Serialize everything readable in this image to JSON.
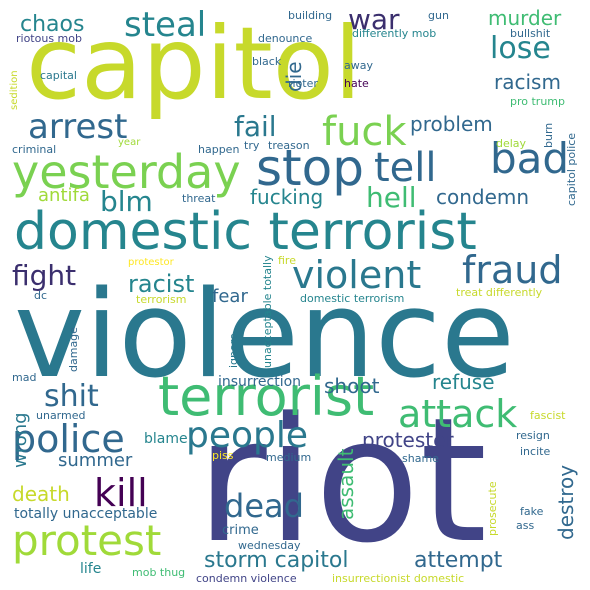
{
  "palette": {
    "lime": "#c7d92b",
    "green": "#7ad151",
    "lightgreen": "#a0da39",
    "mint": "#3fbc73",
    "teal": "#1f9e89",
    "teal2": "#25858e",
    "blue": "#2a788e",
    "steel": "#31688e",
    "indigo": "#414487",
    "deep": "#3b2f6e",
    "purple": "#440154",
    "yellow": "#fde725"
  },
  "words": [
    {
      "text": "violence",
      "color": "#2a788e"
    },
    {
      "text": "riot",
      "color": "#414487"
    },
    {
      "text": "capitol",
      "color": "#c7d92b"
    },
    {
      "text": "domestic terrorist",
      "color": "#25858e"
    },
    {
      "text": "terrorist",
      "color": "#3fbc73"
    },
    {
      "text": "yesterday",
      "color": "#7ad151"
    },
    {
      "text": "stop",
      "color": "#31688e"
    },
    {
      "text": "violent",
      "color": "#2a788e"
    },
    {
      "text": "fraud",
      "color": "#31688e"
    },
    {
      "text": "protest",
      "color": "#a0da39"
    },
    {
      "text": "police",
      "color": "#31688e"
    },
    {
      "text": "attack",
      "color": "#3fbc73"
    },
    {
      "text": "people",
      "color": "#2a788e"
    },
    {
      "text": "fuck",
      "color": "#7ad151"
    },
    {
      "text": "tell",
      "color": "#31688e"
    },
    {
      "text": "bad",
      "color": "#31688e"
    },
    {
      "text": "arrest",
      "color": "#31688e"
    },
    {
      "text": "steal",
      "color": "#25858e"
    },
    {
      "text": "kill",
      "color": "#440154"
    },
    {
      "text": "war",
      "color": "#3b2f6e"
    },
    {
      "text": "hell",
      "color": "#3fbc73"
    },
    {
      "text": "blm",
      "color": "#25858e"
    },
    {
      "text": "fight",
      "color": "#3b2f6e"
    },
    {
      "text": "shit",
      "color": "#31688e"
    },
    {
      "text": "dead",
      "color": "#31688e"
    },
    {
      "text": "lose",
      "color": "#25858e"
    },
    {
      "text": "fail",
      "color": "#2a788e"
    },
    {
      "text": "chaos",
      "color": "#25858e"
    },
    {
      "text": "storm capitol",
      "color": "#2a788e"
    },
    {
      "text": "attempt",
      "color": "#31688e"
    },
    {
      "text": "racist",
      "color": "#25858e"
    },
    {
      "text": "problem",
      "color": "#31688e"
    },
    {
      "text": "fucking",
      "color": "#25858e"
    },
    {
      "text": "condemn",
      "color": "#31688e"
    },
    {
      "text": "racism",
      "color": "#31688e"
    },
    {
      "text": "murder",
      "color": "#3fbc73"
    },
    {
      "text": "protester",
      "color": "#414487"
    },
    {
      "text": "refuse",
      "color": "#25858e"
    },
    {
      "text": "shoot",
      "color": "#31688e"
    },
    {
      "text": "death",
      "color": "#c7d92b"
    },
    {
      "text": "summer",
      "color": "#31688e"
    },
    {
      "text": "antifa",
      "color": "#a0da39"
    },
    {
      "text": "fear",
      "color": "#31688e"
    },
    {
      "text": "die",
      "color": "#31688e"
    },
    {
      "text": "wrong",
      "color": "#2a788e"
    },
    {
      "text": "assault",
      "color": "#3fbc73"
    },
    {
      "text": "destroy",
      "color": "#31688e"
    },
    {
      "text": "insurrection",
      "color": "#31688e"
    },
    {
      "text": "totally unacceptable",
      "color": "#31688e"
    },
    {
      "text": "blame",
      "color": "#25858e"
    },
    {
      "text": "life",
      "color": "#25858e"
    },
    {
      "text": "crime",
      "color": "#31688e"
    },
    {
      "text": "riotous mob",
      "color": "#414487"
    },
    {
      "text": "capital",
      "color": "#2a788e"
    },
    {
      "text": "building",
      "color": "#31688e"
    },
    {
      "text": "gun",
      "color": "#31688e"
    },
    {
      "text": "bullshit",
      "color": "#31688e"
    },
    {
      "text": "denounce",
      "color": "#31688e"
    },
    {
      "text": "differently mob",
      "color": "#25858e"
    },
    {
      "text": "black",
      "color": "#31688e"
    },
    {
      "text": "away",
      "color": "#31688e"
    },
    {
      "text": "rioter",
      "color": "#31688e"
    },
    {
      "text": "hate",
      "color": "#440154"
    },
    {
      "text": "pro trump",
      "color": "#3fbc73"
    },
    {
      "text": "sedition",
      "color": "#c7d92b"
    },
    {
      "text": "criminal",
      "color": "#31688e"
    },
    {
      "text": "year",
      "color": "#a0da39"
    },
    {
      "text": "happen",
      "color": "#31688e"
    },
    {
      "text": "try",
      "color": "#31688e"
    },
    {
      "text": "treason",
      "color": "#31688e"
    },
    {
      "text": "delay",
      "color": "#a0da39"
    },
    {
      "text": "burn",
      "color": "#31688e"
    },
    {
      "text": "capitol police",
      "color": "#31688e"
    },
    {
      "text": "threat",
      "color": "#31688e"
    },
    {
      "text": "protestor",
      "color": "#fde725"
    },
    {
      "text": "fire",
      "color": "#c7d92b"
    },
    {
      "text": "dc",
      "color": "#31688e"
    },
    {
      "text": "terrorism",
      "color": "#c7d92b"
    },
    {
      "text": "domestic terrorism",
      "color": "#25858e"
    },
    {
      "text": "treat differently",
      "color": "#c7d92b"
    },
    {
      "text": "unacceptable totally",
      "color": "#25858e"
    },
    {
      "text": "ignore",
      "color": "#2a788e"
    },
    {
      "text": "damage",
      "color": "#31688e"
    },
    {
      "text": "mad",
      "color": "#31688e"
    },
    {
      "text": "unarmed",
      "color": "#31688e"
    },
    {
      "text": "fascist",
      "color": "#c7d92b"
    },
    {
      "text": "resign",
      "color": "#31688e"
    },
    {
      "text": "incite",
      "color": "#31688e"
    },
    {
      "text": "shame",
      "color": "#31688e"
    },
    {
      "text": "piss",
      "color": "#fde725"
    },
    {
      "text": "medium",
      "color": "#31688e"
    },
    {
      "text": "prosecute",
      "color": "#c7d92b"
    },
    {
      "text": "fake",
      "color": "#31688e"
    },
    {
      "text": "ass",
      "color": "#31688e"
    },
    {
      "text": "wednesday",
      "color": "#31688e"
    },
    {
      "text": "mob thug",
      "color": "#3fbc73"
    },
    {
      "text": "condemn violence",
      "color": "#414487"
    },
    {
      "text": "insurrectionist domestic",
      "color": "#c7d92b"
    }
  ]
}
